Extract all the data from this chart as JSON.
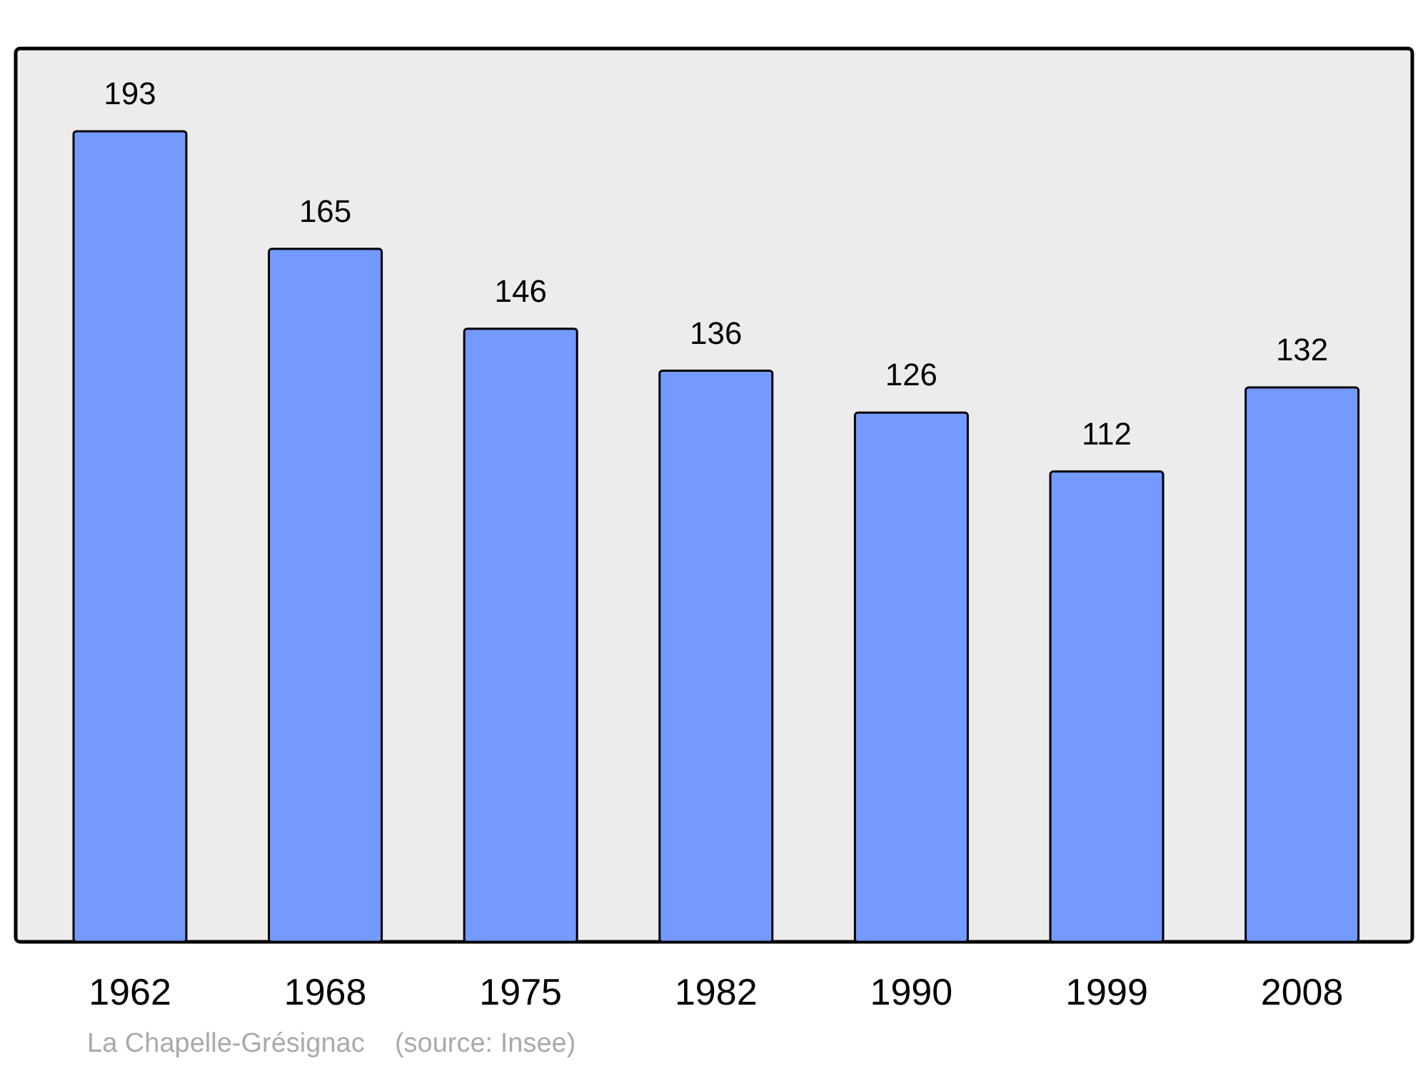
{
  "chart_data": {
    "type": "bar",
    "categories": [
      "1962",
      "1968",
      "1975",
      "1982",
      "1990",
      "1999",
      "2008"
    ],
    "values": [
      193,
      165,
      146,
      136,
      126,
      112,
      132
    ],
    "color": "#7499ff",
    "data_labels": true,
    "annotations": [
      "La Chapelle-Grésignac    (source: Insee)"
    ]
  }
}
